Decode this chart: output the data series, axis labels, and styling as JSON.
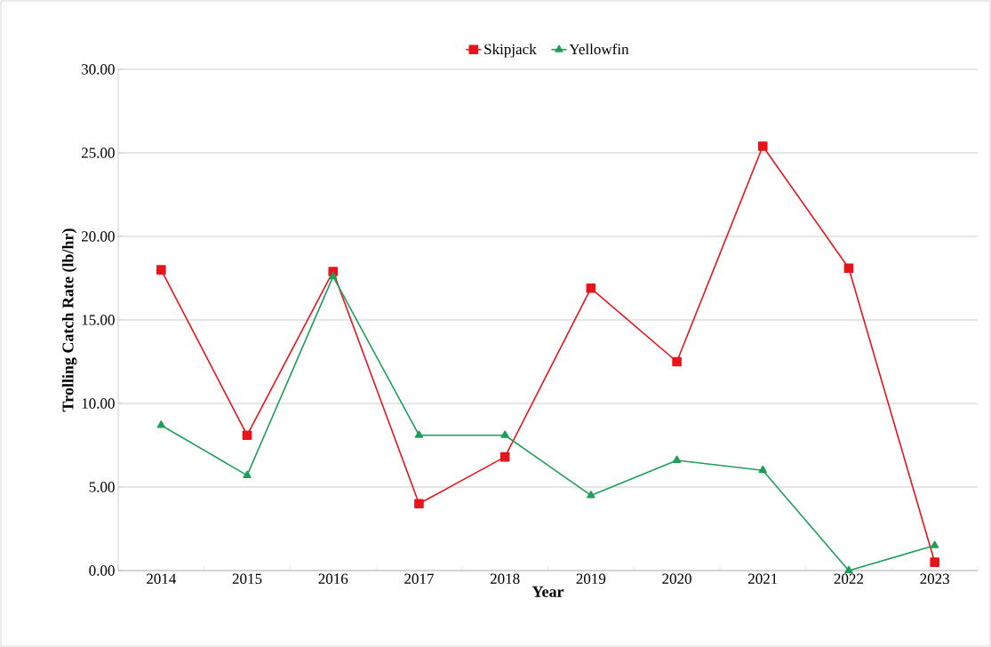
{
  "chart_data": {
    "type": "line",
    "xlabel": "Year",
    "ylabel": "Trolling Catch  Rate (lb/hr)",
    "categories": [
      "2014",
      "2015",
      "2016",
      "2017",
      "2018",
      "2019",
      "2020",
      "2021",
      "2022",
      "2023"
    ],
    "series": [
      {
        "name": "Skipjack",
        "color": "#e8141c",
        "marker": "square",
        "values": [
          18.0,
          8.1,
          17.9,
          4.0,
          6.8,
          16.9,
          12.5,
          25.4,
          18.1,
          0.5
        ]
      },
      {
        "name": "Yellowfin",
        "color": "#1f9e5a",
        "marker": "triangle",
        "values": [
          8.7,
          5.7,
          17.6,
          8.1,
          8.1,
          4.5,
          6.6,
          6.0,
          0.0,
          1.5
        ]
      }
    ],
    "ylim": [
      0,
      30
    ],
    "yticks": [
      {
        "value": 0,
        "label": "0.00"
      },
      {
        "value": 5,
        "label": "5.00"
      },
      {
        "value": 10,
        "label": "10.00"
      },
      {
        "value": 15,
        "label": "15.00"
      },
      {
        "value": 20,
        "label": "20.00"
      },
      {
        "value": 25,
        "label": "25.00"
      },
      {
        "value": 30,
        "label": "30.00"
      }
    ],
    "grid": "y",
    "legend": "top",
    "line_style": "solid"
  }
}
